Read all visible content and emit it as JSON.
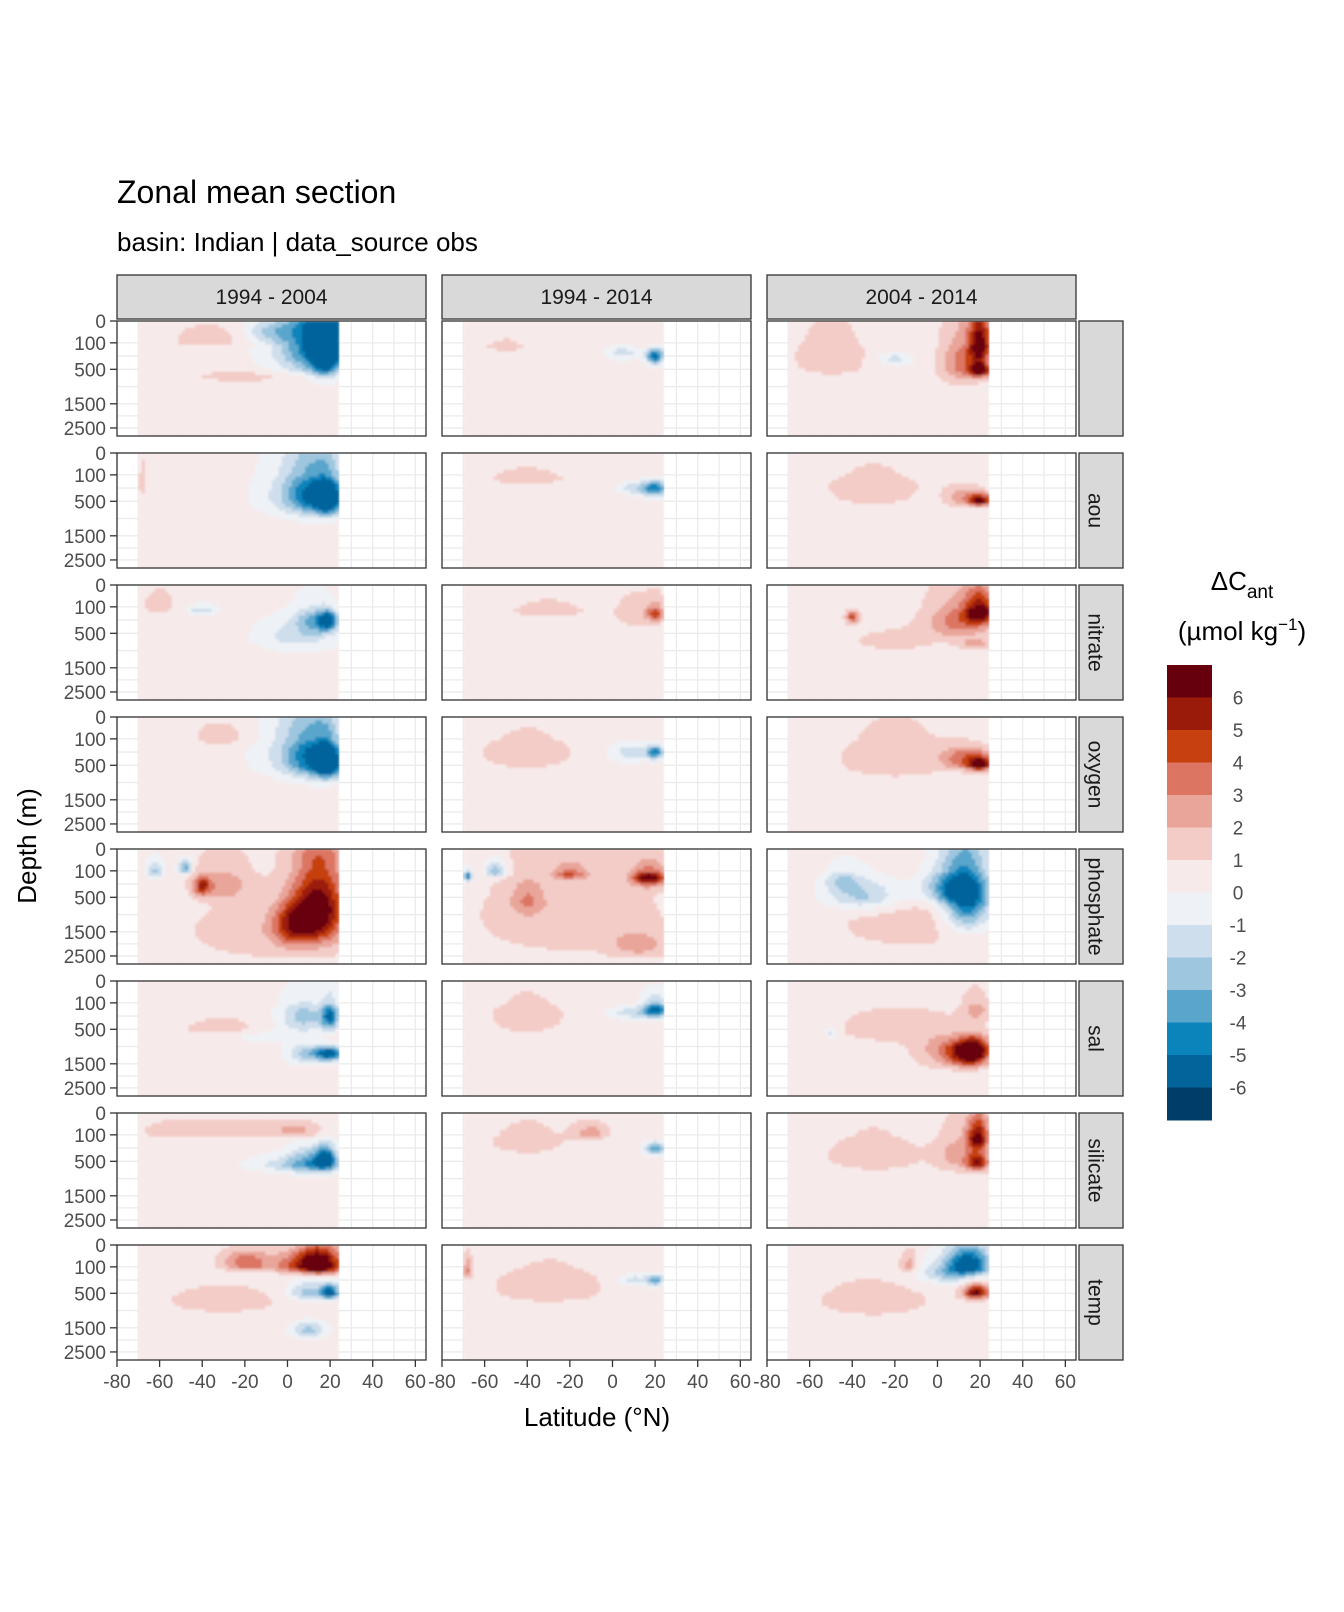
{
  "chart_data": {
    "type": "heatmap",
    "title": "Zonal mean section",
    "subtitle": "basin: Indian | data_source obs",
    "xlabel": "Latitude (°N)",
    "ylabel": "Depth (m)",
    "column_strips": [
      "1994 - 2004",
      "1994 - 2014",
      "2004 - 2014"
    ],
    "row_strips": [
      "",
      "aou",
      "nitrate",
      "oxygen",
      "phosphate",
      "sal",
      "silicate",
      "temp"
    ],
    "x_ticks": [
      "-80",
      "-60",
      "-40",
      "-20",
      "0",
      "20",
      "40",
      "60"
    ],
    "x_tick_values": [
      -80,
      -60,
      -40,
      -20,
      0,
      20,
      40,
      60
    ],
    "xlim": [
      -80,
      65
    ],
    "data_xrange": [
      -70,
      24
    ],
    "y_ticks": [
      "0",
      "100",
      "500",
      "1500",
      "2500"
    ],
    "y_tick_depths": [
      0,
      100,
      500,
      1500,
      2500
    ],
    "legend": {
      "title_main": "ΔC",
      "title_sub": "ant",
      "title_units": "(µmol kg",
      "title_units_sup": "−1",
      "title_units_end": ")",
      "labels": [
        "6",
        "5",
        "4",
        "3",
        "2",
        "1",
        "0",
        "-1",
        "-2",
        "-3",
        "-4",
        "-5",
        "-6"
      ],
      "colors": [
        "#67000d",
        "#9b1b0b",
        "#c6410f",
        "#dc7663",
        "#e9a59a",
        "#f3ccc7",
        "#f7eaea",
        "#eef2f6",
        "#cfdeec",
        "#9fc6df",
        "#5aa5cc",
        "#0b84bc",
        "#03649b",
        "#003e69"
      ]
    },
    "panels": [
      [
        {
          "blobs": [
            [
              18,
              150,
              6.5,
              500,
              -6
            ],
            [
              14,
              120,
              14,
              400,
              -4
            ],
            [
              8,
              200,
              22,
              500,
              -2
            ],
            [
              -8,
              50,
              12,
              50,
              -2
            ],
            [
              -35,
              80,
              20,
              80,
              1
            ],
            [
              -15,
              700,
              30,
              200,
              1
            ]
          ]
        },
        {
          "blobs": [
            [
              20,
              300,
              4,
              120,
              -6
            ],
            [
              5,
              250,
              8,
              100,
              -2
            ],
            [
              -50,
              150,
              10,
              80,
              1
            ]
          ]
        },
        {
          "blobs": [
            [
              20,
              150,
              5,
              220,
              6
            ],
            [
              20,
              550,
              5,
              150,
              6
            ],
            [
              12,
              400,
              10,
              450,
              3
            ],
            [
              -20,
              350,
              8,
              100,
              -2
            ],
            [
              -50,
              300,
              20,
              400,
              1
            ]
          ]
        }
      ],
      [
        {
          "blobs": [
            [
              19,
              500,
              6,
              350,
              -6
            ],
            [
              12,
              400,
              12,
              450,
              -4
            ],
            [
              5,
              400,
              20,
              500,
              -2
            ],
            [
              -68,
              200,
              2,
              200,
              1
            ]
          ]
        },
        {
          "blobs": [
            [
              20,
              300,
              6,
              120,
              -5
            ],
            [
              10,
              300,
              8,
              100,
              -2
            ],
            [
              -40,
              150,
              20,
              100,
              1
            ]
          ]
        },
        {
          "blobs": [
            [
              20,
              500,
              5,
              120,
              6
            ],
            [
              12,
              450,
              8,
              200,
              2
            ],
            [
              -30,
              300,
              25,
              300,
              1
            ]
          ]
        }
      ],
      [
        {
          "blobs": [
            [
              19,
              300,
              4,
              150,
              -6
            ],
            [
              12,
              300,
              8,
              200,
              -3
            ],
            [
              5,
              600,
              20,
              400,
              -2
            ],
            [
              -40,
              150,
              8,
              60,
              -2
            ],
            [
              -60,
              100,
              8,
              100,
              1
            ]
          ]
        },
        {
          "blobs": [
            [
              20,
              200,
              4,
              120,
              4
            ],
            [
              10,
              200,
              10,
              200,
              1
            ],
            [
              -30,
              150,
              20,
              100,
              1
            ]
          ]
        },
        {
          "blobs": [
            [
              20,
              180,
              7,
              160,
              6
            ],
            [
              10,
              300,
              15,
              300,
              3
            ],
            [
              -40,
              250,
              3,
              90,
              4
            ],
            [
              18,
              800,
              8,
              150,
              2
            ],
            [
              -20,
              700,
              20,
              300,
              1
            ]
          ]
        }
      ],
      [
        {
          "blobs": [
            [
              19,
              500,
              6,
              350,
              -6
            ],
            [
              12,
              400,
              12,
              450,
              -4
            ],
            [
              4,
              300,
              20,
              500,
              -2
            ],
            [
              -30,
              100,
              15,
              100,
              1
            ]
          ]
        },
        {
          "blobs": [
            [
              20,
              300,
              4,
              100,
              -5
            ],
            [
              8,
              300,
              10,
              150,
              -2
            ],
            [
              -40,
              300,
              25,
              300,
              1
            ]
          ]
        },
        {
          "blobs": [
            [
              20,
              500,
              5,
              150,
              6
            ],
            [
              12,
              400,
              10,
              200,
              3
            ],
            [
              -20,
              400,
              30,
              500,
              1
            ]
          ]
        }
      ],
      [
        {
          "blobs": [
            [
              15,
              800,
              12,
              1000,
              6
            ],
            [
              3,
              1300,
              10,
              700,
              4
            ],
            [
              -40,
              320,
              4,
              150,
              4
            ],
            [
              -30,
              300,
              12,
              250,
              2
            ],
            [
              -48,
              90,
              3,
              50,
              -4
            ],
            [
              -62,
              120,
              4,
              80,
              -3
            ],
            [
              -10,
              1500,
              40,
              1200,
              1
            ]
          ]
        },
        {
          "blobs": [
            [
              17,
              200,
              8,
              120,
              6
            ],
            [
              -55,
              120,
              5,
              70,
              -4
            ],
            [
              -68,
              180,
              2,
              80,
              -6
            ],
            [
              -20,
              150,
              8,
              80,
              3
            ],
            [
              -40,
              600,
              8,
              400,
              2
            ],
            [
              12,
              2000,
              12,
              500,
              2
            ],
            [
              -20,
              1000,
              50,
              1500,
              1
            ]
          ]
        },
        {
          "blobs": [
            [
              14,
              650,
              11,
              750,
              -6
            ],
            [
              6,
              350,
              14,
              300,
              -4
            ],
            [
              -35,
              500,
              18,
              350,
              -3
            ],
            [
              -45,
              250,
              8,
              150,
              -2
            ],
            [
              -10,
              1200,
              40,
              1000,
              1
            ]
          ]
        }
      ],
      [
        {
          "blobs": [
            [
              20,
              300,
              4,
              200,
              -5
            ],
            [
              20,
              1200,
              6,
              200,
              -6
            ],
            [
              10,
              1200,
              10,
              300,
              -3
            ],
            [
              8,
              300,
              12,
              250,
              -3
            ],
            [
              -10,
              700,
              20,
              200,
              -1
            ],
            [
              -30,
              500,
              20,
              200,
              1
            ]
          ]
        },
        {
          "blobs": [
            [
              20,
              200,
              6,
              120,
              -6
            ],
            [
              8,
              250,
              10,
              100,
              -2
            ],
            [
              -40,
              300,
              20,
              300,
              1
            ]
          ]
        },
        {
          "blobs": [
            [
              17,
              1100,
              7,
              400,
              6
            ],
            [
              12,
              1200,
              10,
              350,
              3
            ],
            [
              5,
              1100,
              15,
              500,
              2
            ],
            [
              18,
              200,
              6,
              150,
              2
            ],
            [
              -50,
              600,
              3,
              150,
              -2
            ],
            [
              -20,
              500,
              30,
              400,
              1
            ]
          ]
        }
      ],
      [
        {
          "blobs": [
            [
              18,
              500,
              5,
              250,
              -6
            ],
            [
              10,
              550,
              10,
              300,
              -3
            ],
            [
              0,
              600,
              20,
              200,
              -2
            ],
            [
              5,
              80,
              12,
              50,
              2
            ],
            [
              -20,
              80,
              15,
              60,
              1
            ],
            [
              -50,
              80,
              20,
              60,
              1
            ]
          ]
        },
        {
          "blobs": [
            [
              20,
              300,
              5,
              100,
              -4
            ],
            [
              -10,
              100,
              8,
              60,
              2
            ],
            [
              -40,
              200,
              20,
              200,
              1
            ]
          ]
        },
        {
          "blobs": [
            [
              19,
              150,
              5,
              150,
              6
            ],
            [
              19,
              550,
              5,
              200,
              5
            ],
            [
              10,
              400,
              10,
              350,
              2
            ],
            [
              -30,
              400,
              25,
              400,
              1
            ]
          ]
        }
      ],
      [
        {
          "blobs": [
            [
              15,
              100,
              10,
              110,
              6
            ],
            [
              5,
              100,
              16,
              80,
              3
            ],
            [
              -20,
              80,
              10,
              60,
              3
            ],
            [
              20,
              500,
              4,
              150,
              -6
            ],
            [
              10,
              500,
              10,
              200,
              -3
            ],
            [
              10,
              1600,
              8,
              300,
              -3
            ],
            [
              -30,
              700,
              30,
              400,
              1
            ]
          ]
        },
        {
          "blobs": [
            [
              -68,
              150,
              2,
              100,
              3
            ],
            [
              20,
              300,
              4,
              80,
              -4
            ],
            [
              10,
              300,
              8,
              100,
              -2
            ],
            [
              -30,
              400,
              30,
              400,
              1
            ]
          ]
        },
        {
          "blobs": [
            [
              15,
              100,
              10,
              110,
              -6
            ],
            [
              18,
              500,
              6,
              150,
              6
            ],
            [
              5,
              200,
              15,
              150,
              -3
            ],
            [
              -13,
              100,
              4,
              80,
              2
            ],
            [
              -30,
              700,
              30,
              500,
              1
            ]
          ]
        }
      ]
    ]
  }
}
